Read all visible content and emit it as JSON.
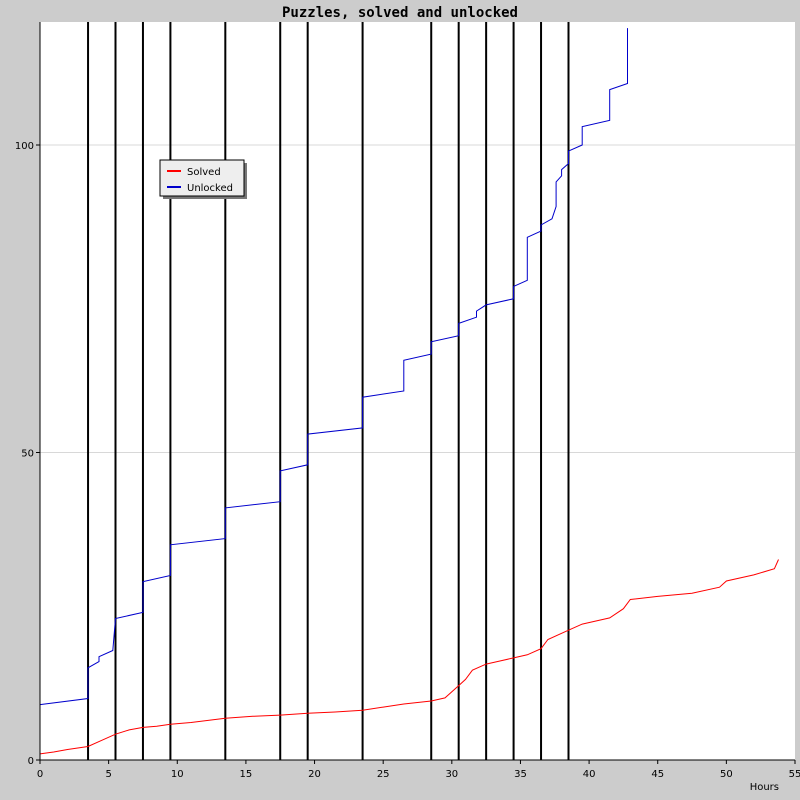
{
  "chart_data": {
    "type": "line",
    "title": "Puzzles, solved and unlocked",
    "xlabel": "Hours",
    "ylabel": "",
    "xlim": [
      0,
      55
    ],
    "ylim": [
      0,
      120
    ],
    "xticks": [
      0,
      5,
      10,
      15,
      20,
      25,
      30,
      35,
      40,
      45,
      50,
      55
    ],
    "yticks": [
      0,
      50,
      100
    ],
    "grid": "horizontal",
    "legend_position": "top-left",
    "vertical_markers": [
      3.5,
      5.5,
      7.5,
      9.5,
      13.5,
      17.5,
      19.5,
      23.5,
      28.5,
      30.5,
      32.5,
      34.5,
      36.5,
      38.5
    ],
    "series": [
      {
        "name": "Solved",
        "color": "#ff0000",
        "points": [
          [
            0,
            1
          ],
          [
            1,
            1.3
          ],
          [
            2,
            1.7
          ],
          [
            3.5,
            2.2
          ],
          [
            4.5,
            3.2
          ],
          [
            5.5,
            4.2
          ],
          [
            6.5,
            4.9
          ],
          [
            7.5,
            5.3
          ],
          [
            8.5,
            5.5
          ],
          [
            9.5,
            5.8
          ],
          [
            11,
            6.1
          ],
          [
            13.5,
            6.8
          ],
          [
            15.5,
            7.1
          ],
          [
            17.5,
            7.3
          ],
          [
            19.5,
            7.6
          ],
          [
            21.5,
            7.8
          ],
          [
            23.5,
            8.1
          ],
          [
            25,
            8.6
          ],
          [
            26.5,
            9.1
          ],
          [
            28.5,
            9.6
          ],
          [
            29.5,
            10.1
          ],
          [
            30.5,
            12.1
          ],
          [
            31,
            13.1
          ],
          [
            31.5,
            14.6
          ],
          [
            32.5,
            15.6
          ],
          [
            33.5,
            16.1
          ],
          [
            34.5,
            16.6
          ],
          [
            35.5,
            17.1
          ],
          [
            36.5,
            18.1
          ],
          [
            37,
            19.6
          ],
          [
            38.5,
            21.1
          ],
          [
            39.5,
            22.1
          ],
          [
            41.5,
            23.1
          ],
          [
            42.5,
            24.6
          ],
          [
            43,
            26.1
          ],
          [
            45,
            26.6
          ],
          [
            47.5,
            27.1
          ],
          [
            49.5,
            28.1
          ],
          [
            50,
            29.1
          ],
          [
            52,
            30.1
          ],
          [
            53.5,
            31.1
          ],
          [
            53.8,
            32.6
          ]
        ]
      },
      {
        "name": "Unlocked",
        "color": "#0000cc",
        "points": [
          [
            0,
            9
          ],
          [
            3.5,
            10
          ],
          [
            3.5,
            15
          ],
          [
            4.3,
            16
          ],
          [
            4.3,
            16.8
          ],
          [
            5.3,
            17.8
          ],
          [
            5.5,
            23
          ],
          [
            7.5,
            24
          ],
          [
            7.5,
            29
          ],
          [
            9.5,
            30
          ],
          [
            9.5,
            35
          ],
          [
            13.5,
            36
          ],
          [
            13.5,
            41
          ],
          [
            17.5,
            42
          ],
          [
            17.5,
            47
          ],
          [
            19.5,
            48
          ],
          [
            19.5,
            53
          ],
          [
            23.5,
            54
          ],
          [
            23.5,
            59
          ],
          [
            26.5,
            60
          ],
          [
            26.5,
            65
          ],
          [
            28.5,
            66
          ],
          [
            28.5,
            68
          ],
          [
            30.5,
            69
          ],
          [
            30.5,
            71
          ],
          [
            31.8,
            72
          ],
          [
            31.8,
            73
          ],
          [
            32.5,
            74
          ],
          [
            34.5,
            75
          ],
          [
            34.5,
            77
          ],
          [
            35.5,
            78
          ],
          [
            35.5,
            85
          ],
          [
            36.5,
            86
          ],
          [
            36.5,
            87
          ],
          [
            37.3,
            88
          ],
          [
            37.6,
            90
          ],
          [
            37.6,
            94
          ],
          [
            38,
            95
          ],
          [
            38,
            96
          ],
          [
            38.5,
            97
          ],
          [
            38.5,
            99
          ],
          [
            39.5,
            100
          ],
          [
            39.5,
            103
          ],
          [
            41.5,
            104
          ],
          [
            41.5,
            109
          ],
          [
            42.8,
            110
          ],
          [
            42.8,
            119
          ]
        ]
      }
    ]
  }
}
